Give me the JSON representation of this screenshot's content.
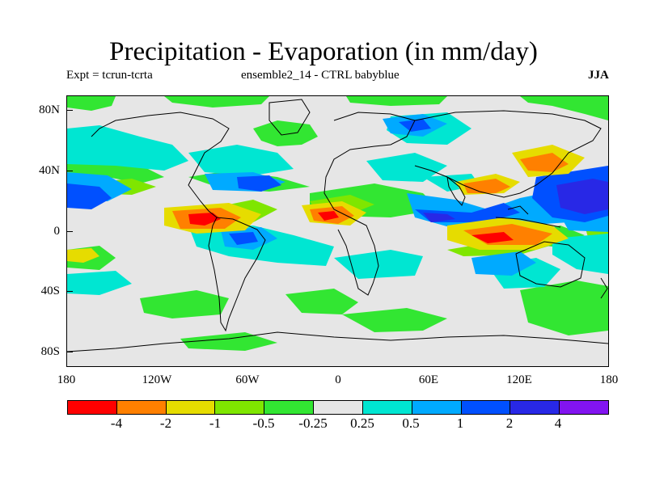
{
  "title": "Precipitation - Evaporation (in mm/day)",
  "subtitle_left": "Expt = tcrun-tcrta",
  "subtitle_center": "ensemble2_14 - CTRL babyblue",
  "season": "JJA",
  "y_axis_labels": [
    "80N",
    "40N",
    "0",
    "40S",
    "80S"
  ],
  "x_axis_labels": [
    "180",
    "120W",
    "60W",
    "0",
    "60E",
    "120E",
    "180"
  ],
  "colorbar": {
    "colors": [
      "#ff0000",
      "#ff8000",
      "#e6dc00",
      "#7fe600",
      "#32e632",
      "#e6e6e6",
      "#00e6d2",
      "#00aaff",
      "#0050ff",
      "#2828e6",
      "#8214f0"
    ],
    "labels": [
      "-4",
      "-2",
      "-1",
      "-0.5",
      "-0.25",
      "0.25",
      "0.5",
      "1",
      "2",
      "4"
    ]
  }
}
